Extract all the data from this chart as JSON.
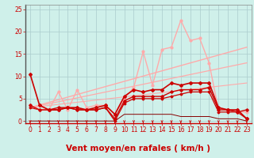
{
  "background_color": "#cff0ea",
  "grid_color": "#aacccc",
  "xlabel": "Vent moyen/en rafales ( km/h )",
  "tick_color": "#cc0000",
  "xlim": [
    -0.5,
    23.5
  ],
  "ylim": [
    -0.5,
    26
  ],
  "yticks": [
    0,
    5,
    10,
    15,
    20,
    25
  ],
  "xticks": [
    0,
    1,
    2,
    3,
    4,
    5,
    6,
    7,
    8,
    9,
    10,
    11,
    12,
    13,
    14,
    15,
    16,
    17,
    18,
    19,
    20,
    21,
    22,
    23
  ],
  "series": [
    {
      "x": [
        0,
        1,
        2,
        3,
        4,
        5,
        6,
        7,
        8,
        9,
        10,
        11,
        12,
        13,
        14,
        15,
        16,
        17,
        18,
        19,
        20,
        21,
        22,
        23
      ],
      "y": [
        10.5,
        3.5,
        2.5,
        2.5,
        3.0,
        3.0,
        2.5,
        3.0,
        3.5,
        1.5,
        5.5,
        7.0,
        6.5,
        7.0,
        7.0,
        8.5,
        8.0,
        8.5,
        8.5,
        8.5,
        3.0,
        2.5,
        2.5,
        0.5
      ],
      "color": "#cc0000",
      "lw": 1.2,
      "marker": "D",
      "ms": 2.0,
      "zorder": 5
    },
    {
      "x": [
        0,
        1,
        2,
        3,
        4,
        5,
        6,
        7,
        8,
        9,
        10,
        11,
        12,
        13,
        14,
        15,
        16,
        17,
        18,
        19,
        20,
        21,
        22,
        23
      ],
      "y": [
        3.5,
        2.5,
        2.5,
        3.0,
        3.0,
        2.5,
        2.5,
        2.5,
        3.0,
        0.5,
        4.5,
        5.5,
        5.5,
        5.5,
        5.5,
        6.5,
        7.0,
        7.0,
        7.0,
        7.5,
        2.5,
        2.5,
        2.0,
        2.5
      ],
      "color": "#cc0000",
      "lw": 1.0,
      "marker": "D",
      "ms": 1.8,
      "zorder": 4
    },
    {
      "x": [
        0,
        1,
        2,
        3,
        4,
        5,
        6,
        7,
        8,
        9,
        10,
        11,
        12,
        13,
        14,
        15,
        16,
        17,
        18,
        19,
        20,
        21,
        22,
        23
      ],
      "y": [
        3.0,
        2.5,
        2.5,
        2.5,
        3.0,
        2.5,
        2.5,
        2.5,
        3.0,
        0.0,
        4.0,
        5.0,
        5.0,
        5.0,
        5.0,
        5.5,
        6.0,
        6.5,
        6.5,
        6.5,
        2.0,
        2.0,
        2.0,
        0.5
      ],
      "color": "#cc0000",
      "lw": 0.9,
      "marker": "D",
      "ms": 1.5,
      "zorder": 3
    },
    {
      "x": [
        0,
        1,
        2,
        3,
        4,
        5,
        6,
        7,
        8,
        9,
        10,
        11,
        12,
        13,
        14,
        15,
        16,
        17,
        18,
        19,
        20,
        21,
        22,
        23
      ],
      "y": [
        0.0,
        0.0,
        0.0,
        0.0,
        0.0,
        0.0,
        0.0,
        0.0,
        0.0,
        0.0,
        1.5,
        1.5,
        1.5,
        1.5,
        1.5,
        1.5,
        1.0,
        1.0,
        1.0,
        1.0,
        0.5,
        0.5,
        0.5,
        0.0
      ],
      "color": "#880000",
      "lw": 0.7,
      "marker": null,
      "ms": 0,
      "zorder": 2
    },
    {
      "x": [
        0,
        1,
        2,
        3,
        4,
        5,
        6,
        7,
        8,
        9,
        10,
        11,
        12,
        13,
        14,
        15,
        16,
        17,
        18,
        19,
        20,
        21,
        22,
        23
      ],
      "y": [
        3.5,
        2.5,
        2.5,
        6.5,
        2.5,
        7.0,
        3.0,
        3.5,
        3.5,
        1.5,
        5.0,
        7.5,
        15.5,
        8.0,
        16.0,
        16.5,
        22.5,
        18.0,
        18.5,
        13.0,
        2.5,
        2.5,
        2.0,
        2.0
      ],
      "color": "#ffaaaa",
      "lw": 1.0,
      "marker": "o",
      "ms": 2.0,
      "zorder": 3
    },
    {
      "x": [
        0,
        23
      ],
      "y": [
        3.0,
        16.5
      ],
      "color": "#ffaaaa",
      "lw": 1.0,
      "marker": null,
      "ms": 0,
      "zorder": 1
    },
    {
      "x": [
        0,
        23
      ],
      "y": [
        3.0,
        13.0
      ],
      "color": "#ffaaaa",
      "lw": 0.9,
      "marker": null,
      "ms": 0,
      "zorder": 1
    },
    {
      "x": [
        0,
        23
      ],
      "y": [
        3.0,
        8.5
      ],
      "color": "#ffaaaa",
      "lw": 0.8,
      "marker": null,
      "ms": 0,
      "zorder": 1
    }
  ],
  "arrows_x": [
    0,
    1,
    2,
    3,
    4,
    5,
    6,
    7,
    8,
    9,
    10,
    11,
    12,
    13,
    14,
    15,
    16,
    17,
    18,
    19,
    20,
    21,
    22,
    23
  ],
  "tick_fontsize": 5.5,
  "xlabel_fontsize": 7.5
}
